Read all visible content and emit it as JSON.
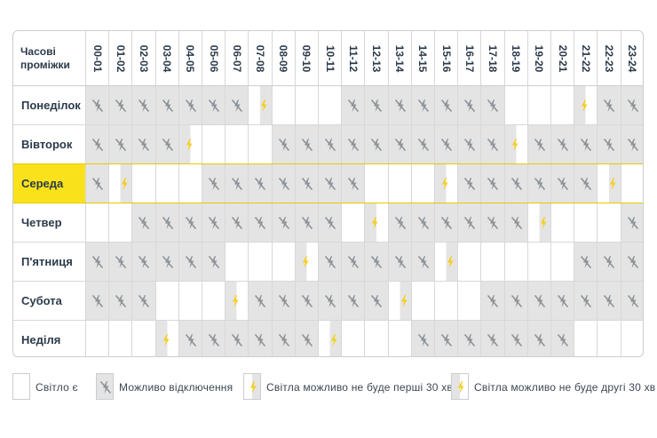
{
  "header": {
    "corner_line1": "Часові",
    "corner_line2": "проміжки",
    "hours": [
      "00-01",
      "01-02",
      "02-03",
      "03-04",
      "04-05",
      "05-06",
      "06-07",
      "07-08",
      "08-09",
      "09-10",
      "10-11",
      "11-12",
      "12-13",
      "13-14",
      "14-15",
      "15-16",
      "16-17",
      "17-18",
      "18-19",
      "19-20",
      "20-21",
      "21-22",
      "22-23",
      "23-24"
    ]
  },
  "today_index": 2,
  "days": [
    {
      "name": "Понеділок",
      "slots": [
        "x",
        "x",
        "x",
        "x",
        "x",
        "x",
        "x",
        "f",
        "e",
        "e",
        "e",
        "x",
        "x",
        "x",
        "x",
        "x",
        "x",
        "x",
        "e",
        "e",
        "e",
        "s",
        "x",
        "x"
      ]
    },
    {
      "name": "Вівторок",
      "slots": [
        "x",
        "x",
        "x",
        "x",
        "s",
        "e",
        "e",
        "e",
        "x",
        "x",
        "x",
        "x",
        "x",
        "x",
        "x",
        "x",
        "x",
        "x",
        "s",
        "x",
        "x",
        "x",
        "x",
        "x"
      ]
    },
    {
      "name": "Середа",
      "slots": [
        "x",
        "f",
        "e",
        "e",
        "e",
        "x",
        "x",
        "x",
        "x",
        "x",
        "x",
        "x",
        "e",
        "e",
        "e",
        "s",
        "x",
        "x",
        "x",
        "x",
        "x",
        "x",
        "f",
        "e"
      ]
    },
    {
      "name": "Четвер",
      "slots": [
        "e",
        "e",
        "x",
        "x",
        "x",
        "x",
        "x",
        "x",
        "x",
        "x",
        "x",
        "e",
        "s",
        "x",
        "x",
        "x",
        "x",
        "x",
        "x",
        "f",
        "e",
        "e",
        "e",
        "x"
      ]
    },
    {
      "name": "П'ятниця",
      "slots": [
        "x",
        "x",
        "x",
        "x",
        "x",
        "x",
        "e",
        "e",
        "e",
        "s",
        "x",
        "x",
        "x",
        "x",
        "x",
        "f",
        "e",
        "e",
        "e",
        "e",
        "e",
        "x",
        "x",
        "x"
      ]
    },
    {
      "name": "Субота",
      "slots": [
        "x",
        "x",
        "x",
        "e",
        "e",
        "e",
        "s",
        "x",
        "x",
        "x",
        "x",
        "x",
        "x",
        "f",
        "e",
        "e",
        "e",
        "x",
        "x",
        "x",
        "x",
        "x",
        "x",
        "x"
      ]
    },
    {
      "name": "Неділя",
      "slots": [
        "e",
        "e",
        "e",
        "s",
        "x",
        "x",
        "x",
        "x",
        "x",
        "x",
        "f",
        "e",
        "e",
        "e",
        "x",
        "x",
        "x",
        "x",
        "x",
        "x",
        "x",
        "e",
        "e",
        "e"
      ]
    }
  ],
  "legend": {
    "light_on": "Світло є",
    "maybe_off": "Можливо відключення",
    "first_half": "Світла можливо не буде перші 30 хв.",
    "second_half": "Світла можливо не буде другі 30 хв"
  },
  "colors": {
    "accent_yellow": "#f9e21a",
    "bolt_yellow": "#f5cf1c",
    "off_grey": "#e4e4e4",
    "icon_grey": "#8d9398"
  },
  "icons": {
    "outage": "crossed-lightning-icon",
    "partial": "yellow-lightning-icon"
  }
}
